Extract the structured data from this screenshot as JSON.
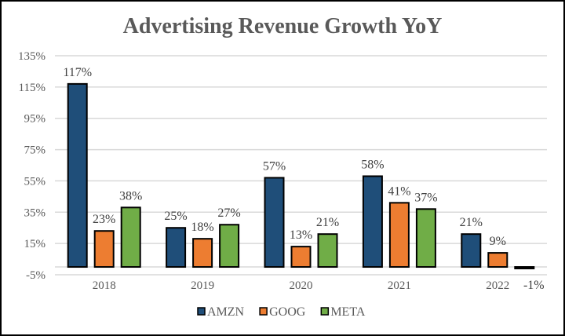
{
  "chart_data": {
    "type": "bar",
    "title": "Advertising Revenue Growth YoY",
    "xlabel": "",
    "ylabel": "",
    "categories": [
      "2018",
      "2019",
      "2020",
      "2021",
      "2022"
    ],
    "series": [
      {
        "name": "AMZN",
        "color": "#1F4E79",
        "values": [
          117,
          25,
          57,
          58,
          21
        ],
        "labels": [
          "117%",
          "25%",
          "57%",
          "58%",
          "21%"
        ]
      },
      {
        "name": "GOOG",
        "color": "#ED7D31",
        "values": [
          23,
          18,
          13,
          41,
          9
        ],
        "labels": [
          "23%",
          "18%",
          "13%",
          "41%",
          "9%"
        ]
      },
      {
        "name": "META",
        "color": "#70AD47",
        "values": [
          38,
          27,
          21,
          37,
          -1
        ],
        "labels": [
          "38%",
          "27%",
          "21%",
          "37%",
          "-1%"
        ]
      }
    ],
    "ylim": [
      -5,
      135
    ],
    "yticks": [
      -5,
      15,
      35,
      55,
      75,
      95,
      115,
      135
    ],
    "ytick_labels": [
      "-5%",
      "15%",
      "35%",
      "55%",
      "75%",
      "95%",
      "115%",
      "135%"
    ],
    "grid": true,
    "legend": "bottom-center"
  }
}
